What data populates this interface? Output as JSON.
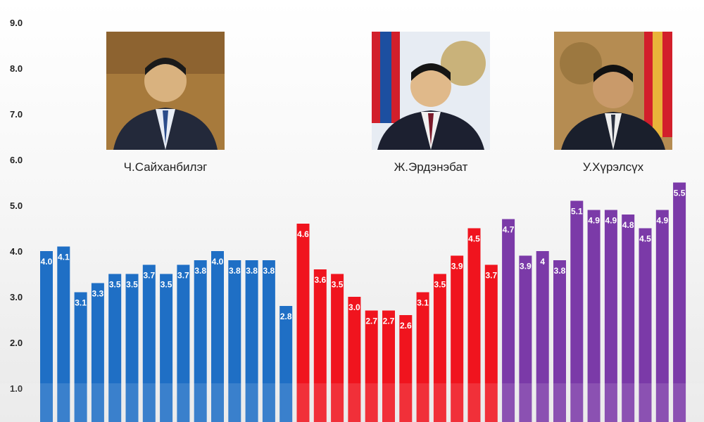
{
  "chart_data": {
    "type": "bar",
    "ylim": [
      0,
      9
    ],
    "yticks": [
      "1.0",
      "2.0",
      "3.0",
      "4.0",
      "5.0",
      "6.0",
      "7.0",
      "8.0",
      "9.0"
    ],
    "colors": {
      "blue": "#1f6fc5",
      "red": "#f0141e",
      "purple": "#7b3aa8"
    },
    "series": [
      {
        "color_key": "blue",
        "values": [
          4.0,
          4.1,
          3.1,
          3.3,
          3.5,
          3.5,
          3.7,
          3.5,
          3.7,
          3.8,
          4.0,
          3.8,
          3.8,
          3.8,
          2.8
        ],
        "labels": [
          "4.0",
          "4.1",
          "3.1",
          "3.3",
          "3.5",
          "3.5",
          "3.7",
          "3.5",
          "3.7",
          "3.8",
          "4.0",
          "3.8",
          "3.8",
          "3.8",
          "2.8"
        ]
      },
      {
        "color_key": "red",
        "values": [
          4.6,
          3.6,
          3.5,
          3.0,
          2.7,
          2.7,
          2.6,
          3.1,
          3.5,
          3.9,
          4.5,
          3.7
        ],
        "labels": [
          "4.6",
          "3.6",
          "3.5",
          "3.0",
          "2.7",
          "2.7",
          "2.6",
          "3.1",
          "3.5",
          "3.9",
          "4.5",
          "3.7"
        ]
      },
      {
        "color_key": "purple",
        "values": [
          4.7,
          3.9,
          4.0,
          3.8,
          5.1,
          4.9,
          4.9,
          4.8,
          4.5,
          4.9,
          5.5
        ],
        "labels": [
          "4.7",
          "3.9",
          "4",
          "3.8",
          "5.1",
          "4.9",
          "4.9",
          "4.8",
          "4.5",
          "4.9",
          "5.5"
        ]
      }
    ]
  },
  "people": [
    {
      "name": "Ч.Сайханбилэг",
      "icon": "portrait-photo",
      "flag": false
    },
    {
      "name": "Ж.Эрдэнэбат",
      "icon": "portrait-photo",
      "flag": true
    },
    {
      "name": "У.Хүрэлсүх",
      "icon": "portrait-photo",
      "flag": true
    }
  ]
}
